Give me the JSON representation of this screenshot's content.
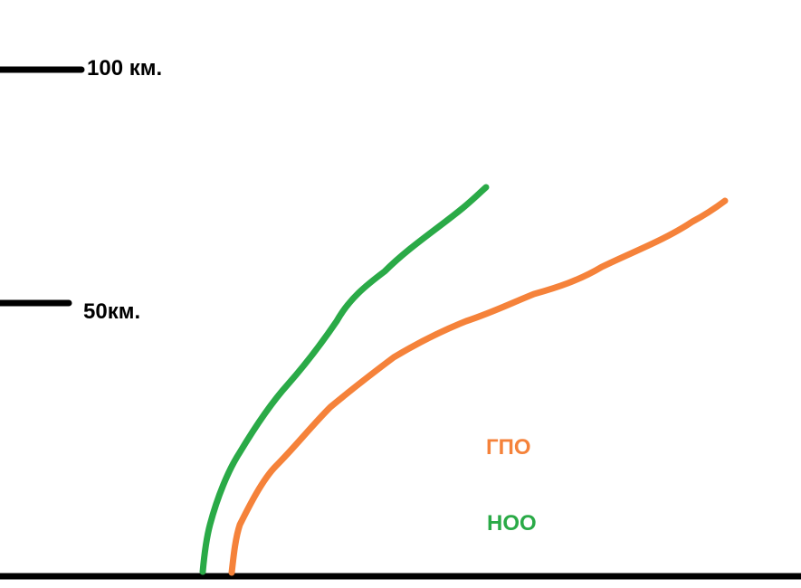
{
  "markers": {
    "top_label": "100 км.",
    "mid_label": "50км."
  },
  "legend": {
    "gpo_label": "ГПО",
    "noo_label": "НОО"
  },
  "colors": {
    "gpo": "#f5823a",
    "noo": "#2aaa47",
    "axis": "#000000"
  }
}
